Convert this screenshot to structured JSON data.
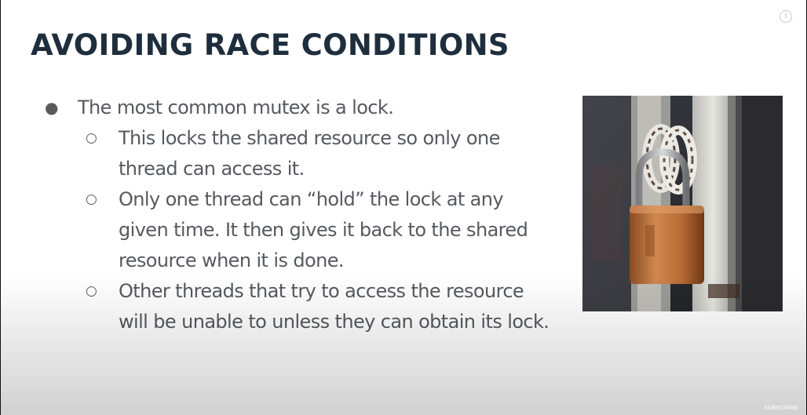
{
  "slide": {
    "title": "AVOIDING RACE CONDITIONS",
    "bullets": [
      {
        "text": "The most common mutex is a lock.",
        "sub_bullets": [
          "This locks the shared resource so only one thread can access it.",
          "Only one thread can “hold” the lock at any given time. It then gives it back to the shared resource when it is done.",
          "Other threads that try to access the resource will be unable to unless they can obtain its lock."
        ]
      }
    ],
    "bullet_marker": "●",
    "sub_bullet_marker": "○"
  },
  "image": {
    "subject": "rusty padlock on white metal gate"
  },
  "overlay": {
    "info_icon": "info-icon",
    "info_glyph": "i",
    "watermark": "SUBSCRIBE"
  },
  "colors": {
    "title": "#1f2e3d",
    "body_text": "#555a60",
    "padlock": "#c0703a"
  }
}
